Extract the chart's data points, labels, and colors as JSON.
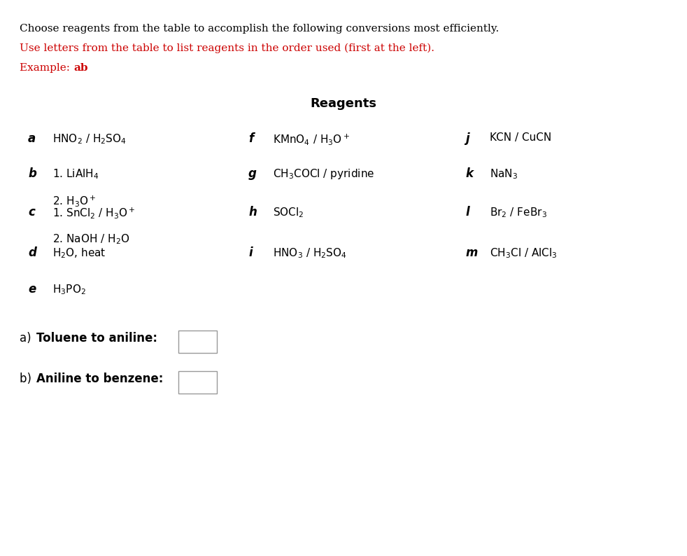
{
  "title_line1": "Choose reagents from the table to accomplish the following conversions most efficiently.",
  "title_line2": "Use letters from the table to list reagents in the order used (first at the left).",
  "title_line3_prefix": "Example: ",
  "title_line3_bold": "ab",
  "title_line1_color": "#000000",
  "title_line2_color": "#cc0000",
  "title_line3_color": "#cc0000",
  "reagents_header": "Reagents",
  "background_color": "#ffffff",
  "reagents": [
    {
      "letter": "a",
      "text": "HNO$_2$ / H$_2$SO$_4$",
      "col": 0
    },
    {
      "letter": "b",
      "text": "1. LiAlH$_4$\n2. H$_3$O$^+$",
      "col": 0
    },
    {
      "letter": "c",
      "text": "1. SnCl$_2$ / H$_3$O$^+$\n2. NaOH / H$_2$O",
      "col": 0
    },
    {
      "letter": "d",
      "text": "H$_2$O, heat",
      "col": 0
    },
    {
      "letter": "e",
      "text": "H$_3$PO$_2$",
      "col": 0
    },
    {
      "letter": "f",
      "text": "KMnO$_4$ / H$_3$O$^+$",
      "col": 1
    },
    {
      "letter": "g",
      "text": "CH$_3$COCl / pyridine",
      "col": 1
    },
    {
      "letter": "h",
      "text": "SOCl$_2$",
      "col": 1
    },
    {
      "letter": "i",
      "text": "HNO$_3$ / H$_2$SO$_4$",
      "col": 1
    },
    {
      "letter": "j",
      "text": "KCN / CuCN",
      "col": 2
    },
    {
      "letter": "k",
      "text": "NaN$_3$",
      "col": 2
    },
    {
      "letter": "l",
      "text": "Br$_2$ / FeBr$_3$",
      "col": 2
    },
    {
      "letter": "m",
      "text": "CH$_3$Cl / AlCl$_3$",
      "col": 2
    }
  ],
  "question_a_label": "a) ",
  "question_a_bold": "Toluene to aniline:",
  "question_b_label": "b) ",
  "question_b_bold": "Aniline to benzene:"
}
